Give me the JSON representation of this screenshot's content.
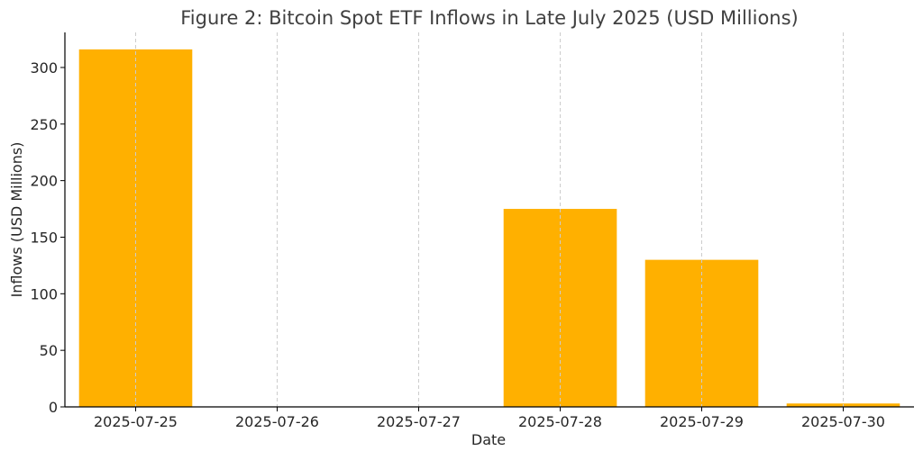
{
  "chart_data": {
    "type": "bar",
    "title": "Figure 2: Bitcoin Spot ETF Inflows in Late July 2025 (USD Millions)",
    "xlabel": "Date",
    "ylabel": "Inflows (USD Millions)",
    "categories": [
      "2025-07-25",
      "2025-07-26",
      "2025-07-27",
      "2025-07-28",
      "2025-07-29",
      "2025-07-30"
    ],
    "series": [
      {
        "values": [
          316,
          0,
          0,
          175,
          130,
          3
        ]
      }
    ],
    "ylim": [
      0,
      331
    ],
    "yticks": [
      0,
      50,
      100,
      150,
      200,
      250,
      300
    ],
    "grid": {
      "x": true,
      "y": false,
      "style": "dashed"
    },
    "colors": {
      "bar": "#FFB000",
      "grid": "#cccccc",
      "axis": "#000000"
    }
  }
}
